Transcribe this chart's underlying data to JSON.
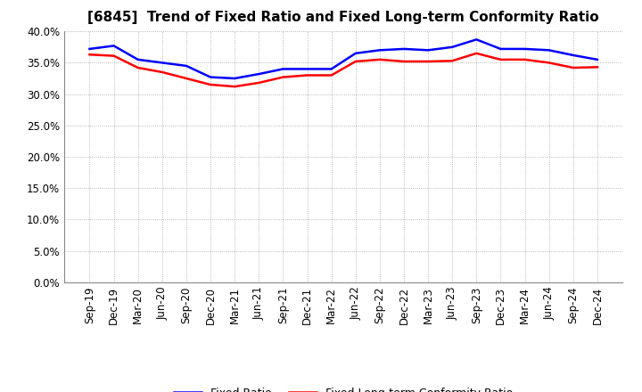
{
  "title": "[6845]  Trend of Fixed Ratio and Fixed Long-term Conformity Ratio",
  "x_labels": [
    "Sep-19",
    "Dec-19",
    "Mar-20",
    "Jun-20",
    "Sep-20",
    "Dec-20",
    "Mar-21",
    "Jun-21",
    "Sep-21",
    "Dec-21",
    "Mar-22",
    "Jun-22",
    "Sep-22",
    "Dec-22",
    "Mar-23",
    "Jun-23",
    "Sep-23",
    "Dec-23",
    "Mar-24",
    "Jun-24",
    "Sep-24",
    "Dec-24"
  ],
  "fixed_ratio": [
    37.2,
    37.7,
    35.5,
    35.0,
    34.5,
    32.7,
    32.5,
    33.2,
    34.0,
    34.0,
    34.0,
    36.5,
    37.0,
    37.2,
    37.0,
    37.5,
    38.7,
    37.2,
    37.2,
    37.0,
    36.2,
    35.5
  ],
  "fixed_lt_ratio": [
    36.3,
    36.1,
    34.2,
    33.5,
    32.5,
    31.5,
    31.2,
    31.8,
    32.7,
    33.0,
    33.0,
    35.2,
    35.5,
    35.2,
    35.2,
    35.3,
    36.5,
    35.5,
    35.5,
    35.0,
    34.2,
    34.3
  ],
  "fixed_ratio_color": "#0000FF",
  "fixed_lt_ratio_color": "#FF0000",
  "ylim": [
    0,
    40
  ],
  "yticks": [
    0.0,
    5.0,
    10.0,
    15.0,
    20.0,
    25.0,
    30.0,
    35.0,
    40.0
  ],
  "background_color": "#FFFFFF",
  "grid_color": "#999999",
  "legend_fixed_ratio": "Fixed Ratio",
  "legend_fixed_lt_ratio": "Fixed Long-term Conformity Ratio",
  "title_fontsize": 11,
  "tick_fontsize": 8.5,
  "legend_fontsize": 9
}
